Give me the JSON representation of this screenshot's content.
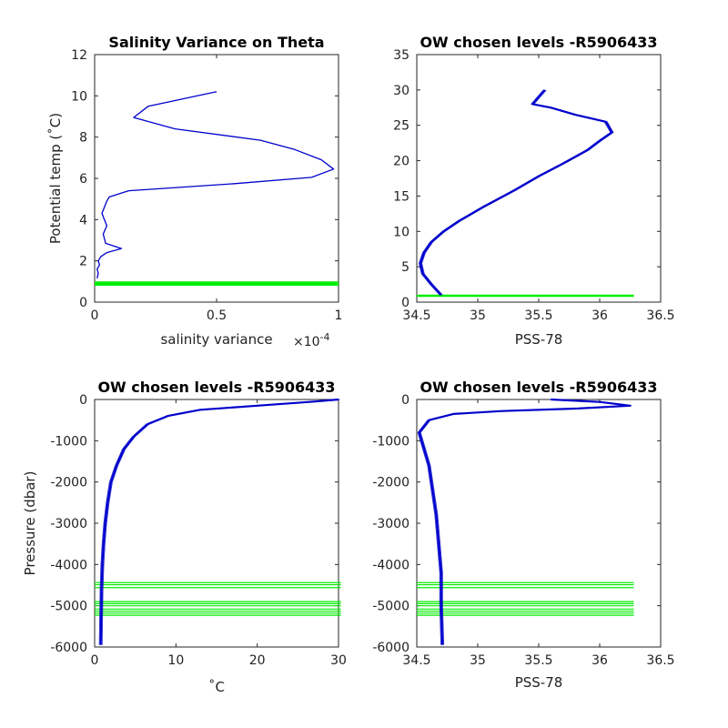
{
  "chart_data": [
    {
      "id": "tl",
      "type": "line",
      "title": "Salinity Variance on Theta",
      "xlabel": "salinity variance",
      "ylabel": "Potential temp (˚C)",
      "x_multiplier": "×10",
      "x_exponent": "-4",
      "xlim": [
        0,
        1
      ],
      "ylim": [
        0,
        12
      ],
      "xticks": [
        0,
        0.5,
        1
      ],
      "xtick_labels": [
        "0",
        "0.5",
        "1"
      ],
      "yticks": [
        0,
        2,
        4,
        6,
        8,
        10,
        12
      ],
      "ytick_labels": [
        "0",
        "2",
        "4",
        "6",
        "8",
        "10",
        "12"
      ],
      "grid": false,
      "series": [
        {
          "color": "#0000cc",
          "x": [
            0.5,
            0.22,
            0.16,
            0.33,
            0.68,
            0.82,
            0.93,
            0.98,
            0.89,
            0.58,
            0.14,
            0.06,
            0.05,
            0.04,
            0.03,
            0.04,
            0.05,
            0.035,
            0.045,
            0.11,
            0.05,
            0.025,
            0.015,
            0.02,
            0.01,
            0.015,
            0.01
          ],
          "y": [
            10.2,
            9.5,
            8.95,
            8.4,
            7.85,
            7.4,
            6.9,
            6.45,
            6.05,
            5.75,
            5.4,
            5.1,
            4.9,
            4.6,
            4.3,
            4.0,
            3.7,
            3.3,
            2.85,
            2.6,
            2.4,
            2.2,
            2.0,
            1.8,
            1.6,
            1.4,
            1.15
          ]
        }
      ],
      "levels": {
        "color": "#00ee00",
        "y": [
          0.85,
          0.9,
          0.95
        ]
      }
    },
    {
      "id": "tr",
      "type": "line",
      "title": "OW chosen levels -R5906433",
      "xlabel": "PSS-78",
      "ylabel": "",
      "xlim": [
        34.5,
        36.5
      ],
      "ylim": [
        0,
        35
      ],
      "xticks": [
        34.5,
        35,
        35.5,
        36,
        36.5
      ],
      "xtick_labels": [
        "34.5",
        "35",
        "35.5",
        "36",
        "36.5"
      ],
      "yticks": [
        0,
        5,
        10,
        15,
        20,
        25,
        30,
        35
      ],
      "ytick_labels": [
        "0",
        "5",
        "10",
        "15",
        "20",
        "25",
        "30",
        "35"
      ],
      "grid": false,
      "series": [
        {
          "color": "#0000cc",
          "x": [
            34.7,
            34.62,
            34.55,
            34.53,
            34.56,
            34.62,
            34.72,
            34.85,
            35.05,
            35.3,
            35.5,
            35.7,
            35.9,
            36.0,
            36.1,
            36.05,
            35.8,
            35.6,
            35.45,
            35.5,
            35.55
          ],
          "y": [
            1.0,
            2.5,
            4.0,
            5.5,
            7.0,
            8.5,
            10.0,
            11.5,
            13.5,
            15.8,
            17.8,
            19.6,
            21.5,
            22.8,
            24.0,
            25.5,
            26.5,
            27.5,
            28.0,
            29.0,
            30.0
          ]
        }
      ],
      "levels": {
        "color": "#00ee00",
        "x_range": [
          34.5,
          36.28
        ],
        "y": [
          0.9
        ]
      }
    },
    {
      "id": "bl",
      "type": "line",
      "title": "OW chosen levels -R5906433",
      "xlabel": "˚C",
      "ylabel": "Pressure (dbar)",
      "xlim": [
        0,
        30
      ],
      "ylim": [
        -6000,
        0
      ],
      "xticks": [
        0,
        10,
        20,
        30
      ],
      "xtick_labels": [
        "0",
        "10",
        "20",
        "30"
      ],
      "yticks": [
        -6000,
        -5000,
        -4000,
        -3000,
        -2000,
        -1000,
        0
      ],
      "ytick_labels": [
        "-6000",
        "-5000",
        "-4000",
        "-3000",
        "-2000",
        "-1000",
        "0"
      ],
      "grid": false,
      "series": [
        {
          "color": "#0000cc",
          "x": [
            30.0,
            27.0,
            20.0,
            13.0,
            9.0,
            6.5,
            4.8,
            3.6,
            2.7,
            2.0,
            1.6,
            1.3,
            1.1,
            0.95,
            0.85,
            0.8,
            0.75
          ],
          "y": [
            0,
            -50,
            -150,
            -250,
            -400,
            -600,
            -900,
            -1200,
            -1600,
            -2000,
            -2500,
            -3000,
            -3500,
            -4000,
            -4600,
            -5300,
            -5950
          ]
        }
      ],
      "levels": {
        "color": "#00ee00",
        "x_range": [
          0,
          30.3
        ],
        "y": [
          -4440,
          -4490,
          -4560,
          -4900,
          -4950,
          -5000,
          -5080,
          -5130,
          -5180,
          -5230
        ]
      }
    },
    {
      "id": "br",
      "type": "line",
      "title": "OW chosen levels -R5906433",
      "xlabel": "PSS-78",
      "ylabel": "",
      "xlim": [
        34.5,
        36.5
      ],
      "ylim": [
        -6000,
        0
      ],
      "xticks": [
        34.5,
        35,
        35.5,
        36,
        36.5
      ],
      "xtick_labels": [
        "34.5",
        "35",
        "35.5",
        "36",
        "36.5"
      ],
      "yticks": [
        -6000,
        -5000,
        -4000,
        -3000,
        -2000,
        -1000,
        0
      ],
      "ytick_labels": [
        "-6000",
        "-5000",
        "-4000",
        "-3000",
        "-2000",
        "-1000",
        "0"
      ],
      "grid": false,
      "series": [
        {
          "color": "#0000cc",
          "x": [
            35.6,
            36.0,
            36.25,
            35.8,
            35.2,
            34.8,
            34.6,
            34.52,
            34.55,
            34.6,
            34.63,
            34.66,
            34.68,
            34.7,
            34.7,
            34.71
          ],
          "y": [
            0,
            -60,
            -150,
            -220,
            -280,
            -350,
            -500,
            -800,
            -1100,
            -1600,
            -2200,
            -2800,
            -3500,
            -4200,
            -5000,
            -5950
          ]
        }
      ],
      "levels": {
        "color": "#00ee00",
        "x_range": [
          34.5,
          36.28
        ],
        "y": [
          -4440,
          -4490,
          -4560,
          -4900,
          -4950,
          -5000,
          -5080,
          -5130,
          -5180,
          -5230
        ]
      }
    }
  ]
}
